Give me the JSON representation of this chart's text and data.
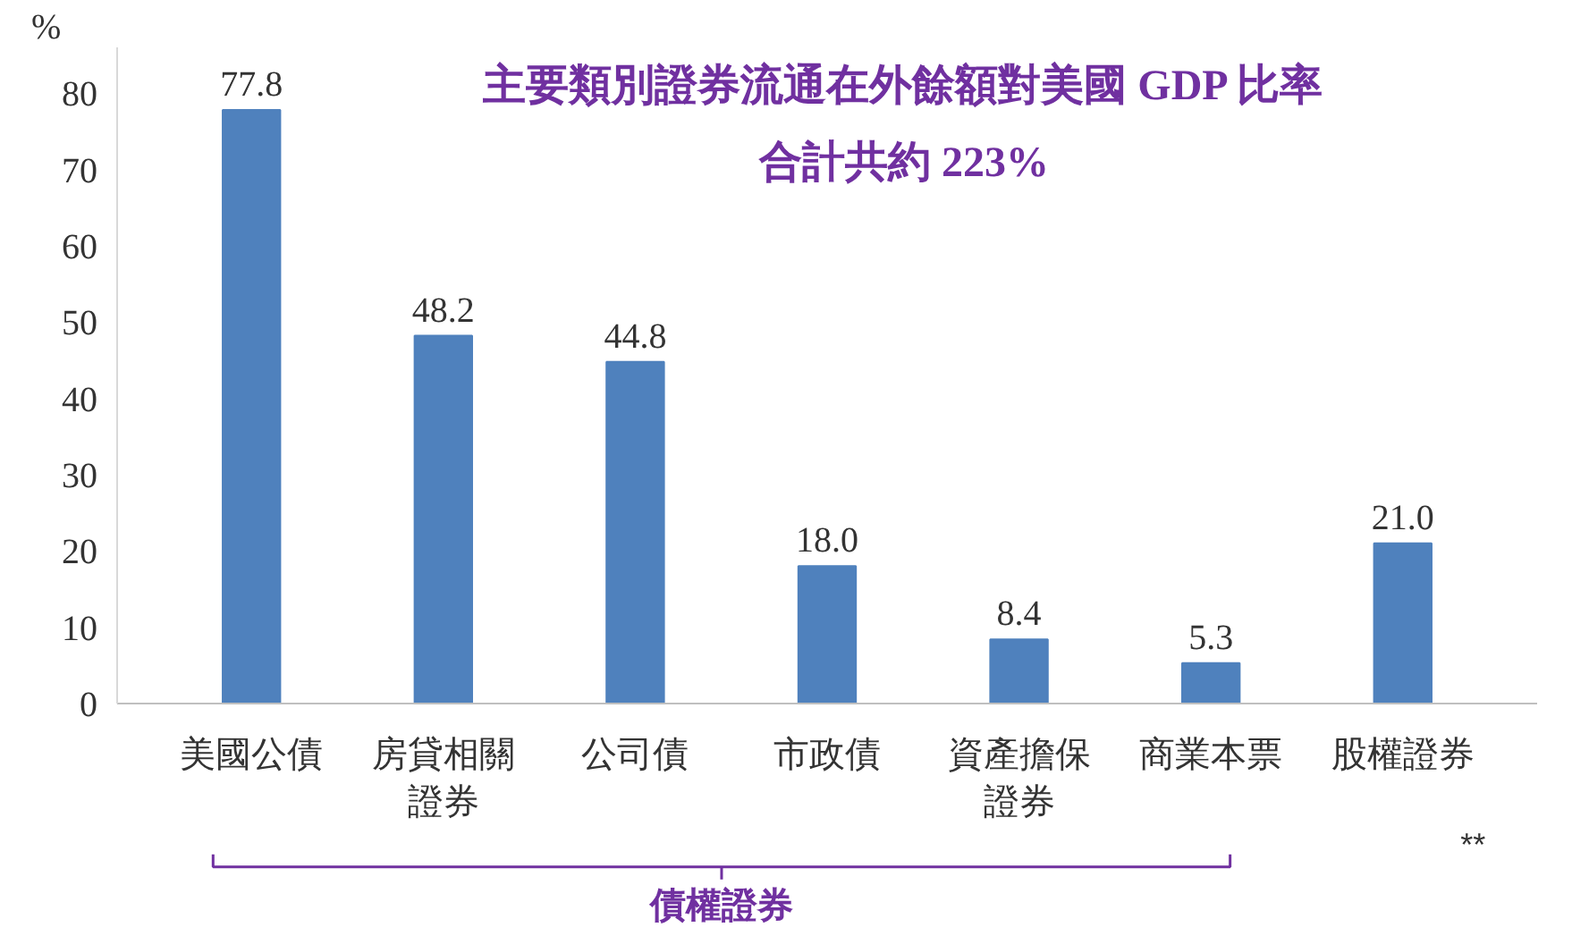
{
  "chart_data": {
    "type": "bar",
    "title": "主要類別證券流通在外餘額對美國 GDP 比率",
    "subtitle": "合計共約 223%",
    "ylabel": "%",
    "categories": [
      "美國公債",
      "房貸相關證券",
      "公司債",
      "市政債",
      "資產擔保證券",
      "商業本票",
      "股權證券"
    ],
    "values": [
      77.8,
      48.2,
      44.8,
      18.0,
      8.4,
      5.3,
      21.0
    ],
    "value_labels": [
      "77.8",
      "48.2",
      "44.8",
      "18.0",
      "8.4",
      "5.3",
      "21.0"
    ],
    "color": "#4f81bd",
    "ylim": [
      0,
      86
    ],
    "yticks": [
      0,
      10,
      20,
      30,
      40,
      50,
      60,
      70,
      80
    ],
    "grid": false,
    "annotations": [
      "**",
      "債權證券"
    ]
  }
}
